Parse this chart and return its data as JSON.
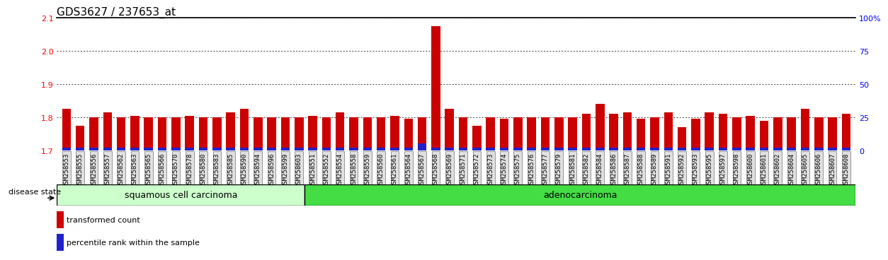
{
  "title": "GDS3627 / 237653_at",
  "samples": [
    "GSM258553",
    "GSM258555",
    "GSM258556",
    "GSM258557",
    "GSM258562",
    "GSM258563",
    "GSM258565",
    "GSM258566",
    "GSM258570",
    "GSM258578",
    "GSM258580",
    "GSM258583",
    "GSM258585",
    "GSM258590",
    "GSM258594",
    "GSM258596",
    "GSM258599",
    "GSM258603",
    "GSM258551",
    "GSM258552",
    "GSM258554",
    "GSM258558",
    "GSM258559",
    "GSM258560",
    "GSM258561",
    "GSM258564",
    "GSM258567",
    "GSM258568",
    "GSM258569",
    "GSM258571",
    "GSM258572",
    "GSM258573",
    "GSM258574",
    "GSM258575",
    "GSM258576",
    "GSM258577",
    "GSM258579",
    "GSM258581",
    "GSM258582",
    "GSM258584",
    "GSM258586",
    "GSM258587",
    "GSM258588",
    "GSM258589",
    "GSM258591",
    "GSM258592",
    "GSM258593",
    "GSM258595",
    "GSM258597",
    "GSM258598",
    "GSM258600",
    "GSM258601",
    "GSM258602",
    "GSM258604",
    "GSM258605",
    "GSM258606",
    "GSM258607",
    "GSM258608"
  ],
  "red_values": [
    1.825,
    1.775,
    1.8,
    1.815,
    1.8,
    1.805,
    1.8,
    1.8,
    1.8,
    1.805,
    1.8,
    1.8,
    1.815,
    1.825,
    1.8,
    1.8,
    1.8,
    1.8,
    1.805,
    1.8,
    1.815,
    1.8,
    1.8,
    1.8,
    1.805,
    1.795,
    1.8,
    2.075,
    1.825,
    1.8,
    1.775,
    1.8,
    1.795,
    1.8,
    1.8,
    1.8,
    1.8,
    1.8,
    1.81,
    1.84,
    1.81,
    1.815,
    1.795,
    1.8,
    1.815,
    1.77,
    1.795,
    1.815,
    1.81,
    1.8,
    1.805,
    1.79,
    1.8,
    1.8,
    1.825,
    1.8,
    1.8,
    1.81
  ],
  "blue_values": [
    2,
    2,
    2,
    2,
    2,
    2,
    2,
    2,
    2,
    2,
    2,
    2,
    2,
    2,
    2,
    2,
    2,
    2,
    2,
    2,
    2,
    2,
    2,
    2,
    2,
    2,
    5,
    2,
    2,
    2,
    2,
    2,
    2,
    2,
    2,
    2,
    2,
    2,
    2,
    2,
    2,
    2,
    2,
    2,
    2,
    2,
    2,
    2,
    2,
    2,
    2,
    2,
    2,
    2,
    2,
    2,
    2,
    2
  ],
  "squamous_count": 18,
  "ylim_left": [
    1.7,
    2.1
  ],
  "ylim_right": [
    0,
    100
  ],
  "yticks_left": [
    1.7,
    1.8,
    1.9,
    2.0,
    2.1
  ],
  "yticks_right": [
    0,
    25,
    50,
    75,
    100
  ],
  "bar_color": "#cc0000",
  "blue_bar_color": "#2222cc",
  "squamous_color": "#ccffcc",
  "adenocarcinoma_color": "#44dd44",
  "grid_color": "black",
  "title_fontsize": 11,
  "tick_fontsize": 6.5,
  "label_fontsize": 9,
  "disease_state_label": "disease state",
  "squamous_label": "squamous cell carcinoma",
  "adenocarcinoma_label": "adenocarcinoma",
  "legend_red": "transformed count",
  "legend_blue": "percentile rank within the sample"
}
